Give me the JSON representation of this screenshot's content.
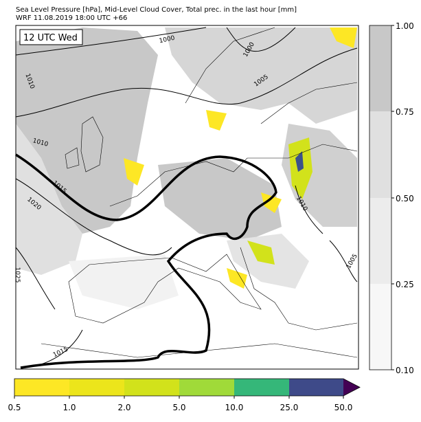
{
  "header": {
    "title_line1": "Sea Level Pressure [hPa], Mid-Level Cloud Cover, Total prec. in the last hour [mm]",
    "title_line2": "WRF 11.08.2019 18:00 UTC +66"
  },
  "map": {
    "time_label": "12 UTC Wed",
    "isobar_labels": [
      "1000",
      "1000",
      "1005",
      "1010",
      "1010",
      "1015",
      "1020",
      "1010",
      "1005",
      "1015",
      "1025"
    ]
  },
  "cloud_colorbar": {
    "ticks": [
      "1.00",
      "0.75",
      "0.50",
      "0.25",
      "0.10"
    ]
  },
  "precip_colorbar": {
    "ticks": [
      "0.5",
      "1.0",
      "2.0",
      "5.0",
      "10.0",
      "25.0",
      "50.0"
    ]
  }
}
